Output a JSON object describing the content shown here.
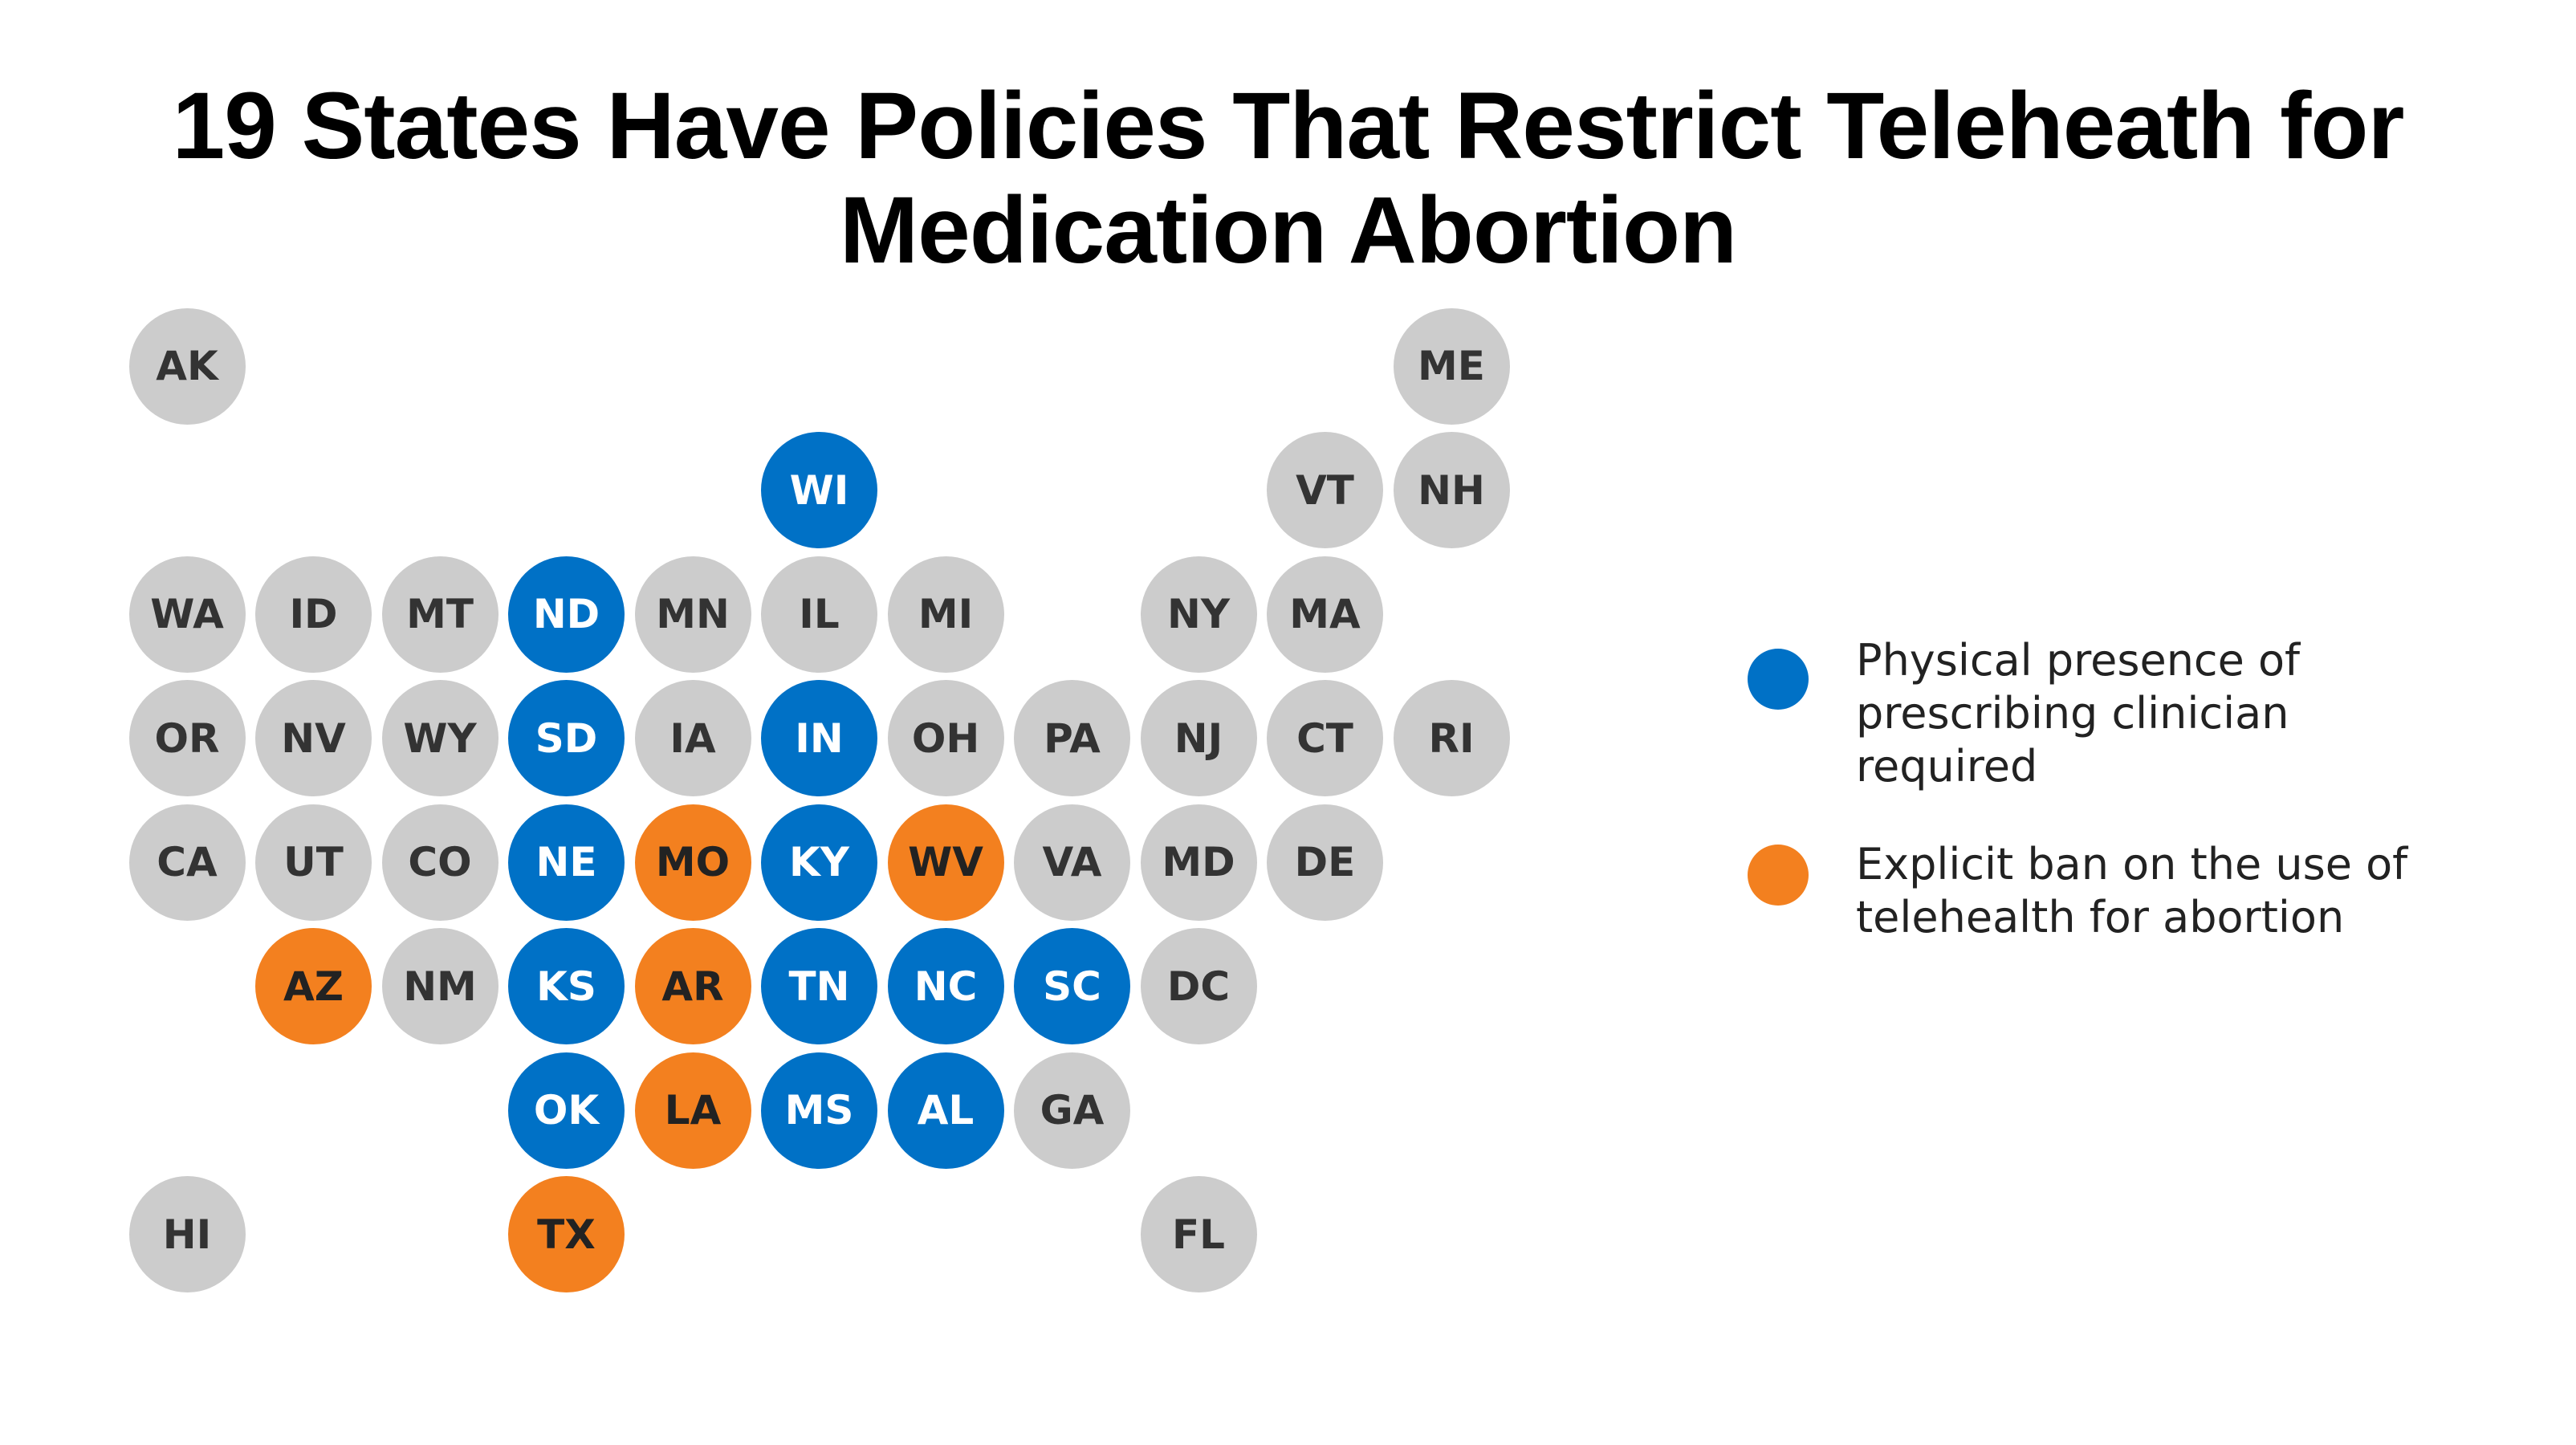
{
  "title": {
    "line1": "19 States Have Policies That Restrict Teleheath for",
    "line2": "Medication Abortion"
  },
  "colors": {
    "none": "#cccccc",
    "presence": "#0071c6",
    "ban": "#f3801f"
  },
  "legend": {
    "presence": {
      "lines": [
        "Physical presence of",
        "prescribing clinician",
        "required"
      ]
    },
    "ban": {
      "lines": [
        "Explicit ban on the use of",
        "telehealth for abortion"
      ]
    }
  },
  "states": [
    {
      "abbr": "AK",
      "row": 0,
      "col": 0,
      "category": "none"
    },
    {
      "abbr": "ME",
      "row": 0,
      "col": 10,
      "category": "none"
    },
    {
      "abbr": "WI",
      "row": 1,
      "col": 5,
      "category": "presence"
    },
    {
      "abbr": "VT",
      "row": 1,
      "col": 9,
      "category": "none"
    },
    {
      "abbr": "NH",
      "row": 1,
      "col": 10,
      "category": "none"
    },
    {
      "abbr": "WA",
      "row": 2,
      "col": 0,
      "category": "none"
    },
    {
      "abbr": "ID",
      "row": 2,
      "col": 1,
      "category": "none"
    },
    {
      "abbr": "MT",
      "row": 2,
      "col": 2,
      "category": "none"
    },
    {
      "abbr": "ND",
      "row": 2,
      "col": 3,
      "category": "presence"
    },
    {
      "abbr": "MN",
      "row": 2,
      "col": 4,
      "category": "none"
    },
    {
      "abbr": "IL",
      "row": 2,
      "col": 5,
      "category": "none"
    },
    {
      "abbr": "MI",
      "row": 2,
      "col": 6,
      "category": "none"
    },
    {
      "abbr": "NY",
      "row": 2,
      "col": 8,
      "category": "none"
    },
    {
      "abbr": "MA",
      "row": 2,
      "col": 9,
      "category": "none"
    },
    {
      "abbr": "OR",
      "row": 3,
      "col": 0,
      "category": "none"
    },
    {
      "abbr": "NV",
      "row": 3,
      "col": 1,
      "category": "none"
    },
    {
      "abbr": "WY",
      "row": 3,
      "col": 2,
      "category": "none"
    },
    {
      "abbr": "SD",
      "row": 3,
      "col": 3,
      "category": "presence"
    },
    {
      "abbr": "IA",
      "row": 3,
      "col": 4,
      "category": "none"
    },
    {
      "abbr": "IN",
      "row": 3,
      "col": 5,
      "category": "presence"
    },
    {
      "abbr": "OH",
      "row": 3,
      "col": 6,
      "category": "none"
    },
    {
      "abbr": "PA",
      "row": 3,
      "col": 7,
      "category": "none"
    },
    {
      "abbr": "NJ",
      "row": 3,
      "col": 8,
      "category": "none"
    },
    {
      "abbr": "CT",
      "row": 3,
      "col": 9,
      "category": "none"
    },
    {
      "abbr": "RI",
      "row": 3,
      "col": 10,
      "category": "none"
    },
    {
      "abbr": "CA",
      "row": 4,
      "col": 0,
      "category": "none"
    },
    {
      "abbr": "UT",
      "row": 4,
      "col": 1,
      "category": "none"
    },
    {
      "abbr": "CO",
      "row": 4,
      "col": 2,
      "category": "none"
    },
    {
      "abbr": "NE",
      "row": 4,
      "col": 3,
      "category": "presence"
    },
    {
      "abbr": "MO",
      "row": 4,
      "col": 4,
      "category": "ban"
    },
    {
      "abbr": "KY",
      "row": 4,
      "col": 5,
      "category": "presence"
    },
    {
      "abbr": "WV",
      "row": 4,
      "col": 6,
      "category": "ban"
    },
    {
      "abbr": "VA",
      "row": 4,
      "col": 7,
      "category": "none"
    },
    {
      "abbr": "MD",
      "row": 4,
      "col": 8,
      "category": "none"
    },
    {
      "abbr": "DE",
      "row": 4,
      "col": 9,
      "category": "none"
    },
    {
      "abbr": "AZ",
      "row": 5,
      "col": 1,
      "category": "ban"
    },
    {
      "abbr": "NM",
      "row": 5,
      "col": 2,
      "category": "none"
    },
    {
      "abbr": "KS",
      "row": 5,
      "col": 3,
      "category": "presence"
    },
    {
      "abbr": "AR",
      "row": 5,
      "col": 4,
      "category": "ban"
    },
    {
      "abbr": "TN",
      "row": 5,
      "col": 5,
      "category": "presence"
    },
    {
      "abbr": "NC",
      "row": 5,
      "col": 6,
      "category": "presence"
    },
    {
      "abbr": "SC",
      "row": 5,
      "col": 7,
      "category": "presence"
    },
    {
      "abbr": "DC",
      "row": 5,
      "col": 8,
      "category": "none"
    },
    {
      "abbr": "OK",
      "row": 6,
      "col": 3,
      "category": "presence"
    },
    {
      "abbr": "LA",
      "row": 6,
      "col": 4,
      "category": "ban"
    },
    {
      "abbr": "MS",
      "row": 6,
      "col": 5,
      "category": "presence"
    },
    {
      "abbr": "AL",
      "row": 6,
      "col": 6,
      "category": "presence"
    },
    {
      "abbr": "GA",
      "row": 6,
      "col": 7,
      "category": "none"
    },
    {
      "abbr": "HI",
      "row": 7,
      "col": 0,
      "category": "none"
    },
    {
      "abbr": "TX",
      "row": 7,
      "col": 3,
      "category": "ban"
    },
    {
      "abbr": "FL",
      "row": 7,
      "col": 8,
      "category": "none"
    }
  ]
}
